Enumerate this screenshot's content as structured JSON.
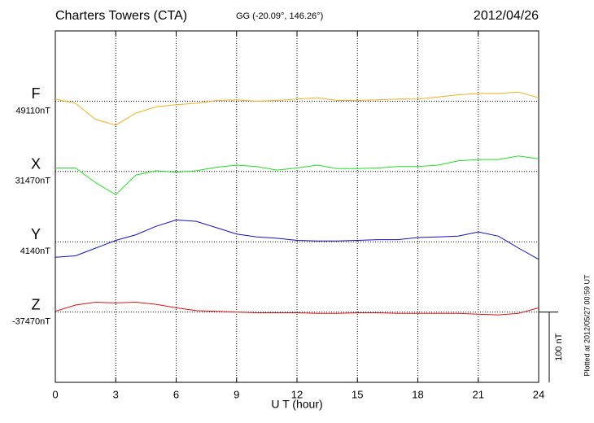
{
  "chart_data": {
    "type": "line",
    "title": "Charters Towers (CTA)",
    "subtitle": "GG (-20.09°, 146.26°)",
    "date": "2012/04/26",
    "x_label": "U T (hour)",
    "note": "Plotted at 2012/05/27 00:59 UT",
    "scale_bar": {
      "value": 100,
      "label": "100 nT"
    },
    "xlim": [
      0,
      24
    ],
    "xticks": [
      0,
      3,
      6,
      9,
      12,
      15,
      18,
      21,
      24
    ],
    "grid": true,
    "x": [
      0,
      1,
      2,
      3,
      4,
      5,
      6,
      7,
      8,
      9,
      10,
      11,
      12,
      13,
      14,
      15,
      16,
      17,
      18,
      19,
      20,
      21,
      22,
      23,
      24
    ],
    "series": [
      {
        "name": "F",
        "color": "#f0b020",
        "baseline": {
          "value": 49110,
          "label": "49110nT"
        },
        "values": [
          49113,
          49107,
          49084,
          49076,
          49093,
          49102,
          49105,
          49107,
          49111,
          49112,
          49110,
          49111,
          49113,
          49115,
          49111,
          49111,
          49112,
          49113,
          49113,
          49116,
          49119,
          49121,
          49121,
          49123,
          49115
        ]
      },
      {
        "name": "X",
        "color": "#20e020",
        "baseline": {
          "value": 31470,
          "label": "31470nT"
        },
        "values": [
          31475,
          31475,
          31454,
          31437,
          31465,
          31471,
          31469,
          31471,
          31476,
          31479,
          31477,
          31472,
          31475,
          31479,
          31474,
          31474,
          31475,
          31477,
          31477,
          31479,
          31485,
          31487,
          31487,
          31492,
          31488
        ]
      },
      {
        "name": "Y",
        "color": "#1010d0",
        "baseline": {
          "value": 4140,
          "label": "4140nT"
        },
        "values": [
          4118,
          4120,
          4131,
          4142,
          4150,
          4162,
          4171,
          4169,
          4160,
          4151,
          4147,
          4145,
          4142,
          4141,
          4141,
          4142,
          4143,
          4143,
          4146,
          4147,
          4148,
          4154,
          4148,
          4131,
          4115
        ]
      },
      {
        "name": "Z",
        "color": "#e01010",
        "baseline": {
          "value": -37470,
          "label": "-37470nT"
        },
        "values": [
          -37469,
          -37460,
          -37456,
          -37457,
          -37456,
          -37459,
          -37464,
          -37468,
          -37469,
          -37470,
          -37471,
          -37471,
          -37471,
          -37472,
          -37472,
          -37471,
          -37471,
          -37472,
          -37472,
          -37472,
          -37472,
          -37473,
          -37474,
          -37472,
          -37464
        ]
      }
    ]
  }
}
